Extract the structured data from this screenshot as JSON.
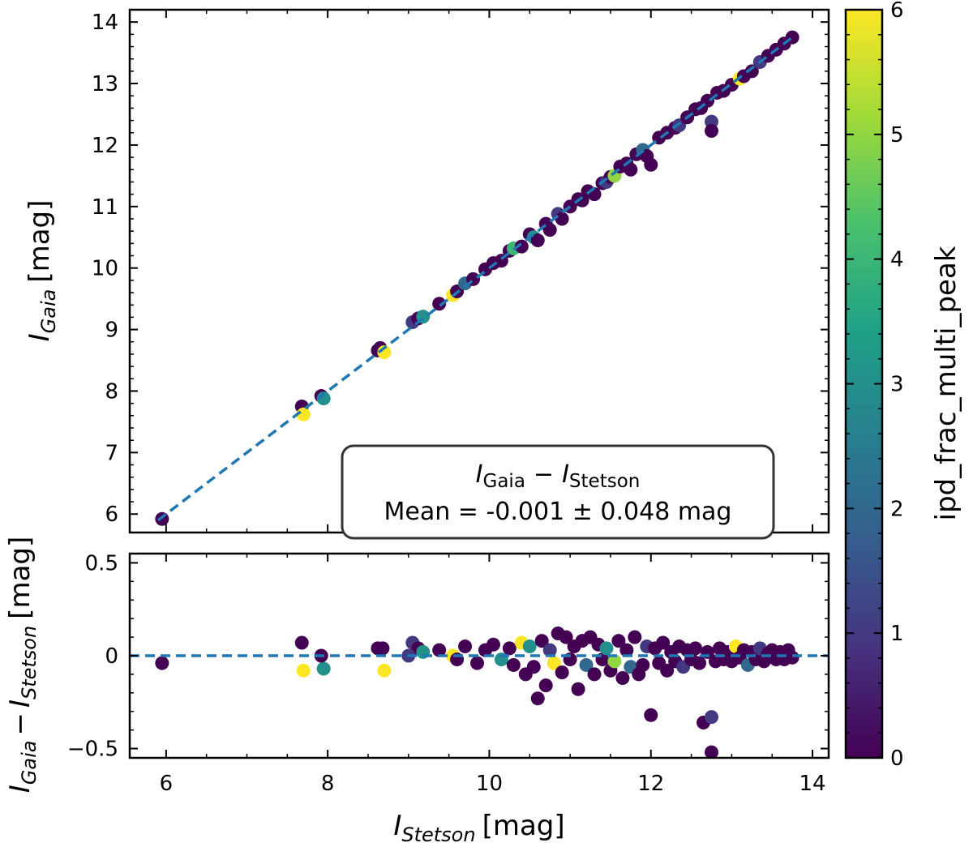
{
  "chart_data": [
    {
      "type": "scatter",
      "panel": "main",
      "xlim": [
        5.55,
        14.2
      ],
      "ylim": [
        5.7,
        14.2
      ],
      "xticks": [
        6,
        8,
        10,
        12,
        14
      ],
      "yticks": [
        6,
        7,
        8,
        9,
        10,
        11,
        12,
        13,
        14
      ],
      "ylabel": {
        "sym": "I",
        "sub": "Gaia",
        "unit": "[mag]"
      },
      "reference_line": {
        "style": "dashed",
        "color": "#1f77b4",
        "x": [
          5.9,
          13.75
        ],
        "y": [
          5.9,
          13.75
        ]
      },
      "points": [
        {
          "x": 5.95,
          "y": 5.92,
          "c": 0
        },
        {
          "x": 7.68,
          "y": 7.75,
          "c": 0
        },
        {
          "x": 7.7,
          "y": 7.62,
          "c": 6
        },
        {
          "x": 7.92,
          "y": 7.92,
          "c": 0
        },
        {
          "x": 7.95,
          "y": 7.88,
          "c": 3
        },
        {
          "x": 8.62,
          "y": 8.66,
          "c": 0
        },
        {
          "x": 8.65,
          "y": 8.7,
          "c": 0
        },
        {
          "x": 8.7,
          "y": 8.63,
          "c": 6
        },
        {
          "x": 9.05,
          "y": 9.12,
          "c": 1
        },
        {
          "x": 9.12,
          "y": 9.18,
          "c": 0
        },
        {
          "x": 9.18,
          "y": 9.21,
          "c": 3
        },
        {
          "x": 9.38,
          "y": 9.42,
          "c": 0
        },
        {
          "x": 9.55,
          "y": 9.56,
          "c": 6
        },
        {
          "x": 9.6,
          "y": 9.62,
          "c": 0
        },
        {
          "x": 9.7,
          "y": 9.75,
          "c": 2
        },
        {
          "x": 9.8,
          "y": 9.82,
          "c": 0
        },
        {
          "x": 9.95,
          "y": 9.98,
          "c": 0
        },
        {
          "x": 10.05,
          "y": 10.08,
          "c": 0
        },
        {
          "x": 10.15,
          "y": 10.12,
          "c": 0
        },
        {
          "x": 10.25,
          "y": 10.28,
          "c": 0
        },
        {
          "x": 10.3,
          "y": 10.32,
          "c": 4
        },
        {
          "x": 10.4,
          "y": 10.35,
          "c": 0
        },
        {
          "x": 10.5,
          "y": 10.55,
          "c": 0
        },
        {
          "x": 10.55,
          "y": 10.5,
          "c": 3
        },
        {
          "x": 10.6,
          "y": 10.45,
          "c": 0
        },
        {
          "x": 10.7,
          "y": 10.72,
          "c": 0
        },
        {
          "x": 10.75,
          "y": 10.62,
          "c": 0
        },
        {
          "x": 10.85,
          "y": 10.88,
          "c": 1
        },
        {
          "x": 10.9,
          "y": 10.8,
          "c": 0
        },
        {
          "x": 11.0,
          "y": 11.0,
          "c": 0
        },
        {
          "x": 11.1,
          "y": 11.12,
          "c": 0
        },
        {
          "x": 11.15,
          "y": 11.1,
          "c": 0
        },
        {
          "x": 11.22,
          "y": 11.25,
          "c": 0
        },
        {
          "x": 11.3,
          "y": 11.2,
          "c": 0
        },
        {
          "x": 11.4,
          "y": 11.38,
          "c": 0
        },
        {
          "x": 11.45,
          "y": 11.4,
          "c": 1
        },
        {
          "x": 11.5,
          "y": 11.48,
          "c": 0
        },
        {
          "x": 11.55,
          "y": 11.5,
          "c": 5
        },
        {
          "x": 11.62,
          "y": 11.65,
          "c": 0
        },
        {
          "x": 11.7,
          "y": 11.7,
          "c": 0
        },
        {
          "x": 11.75,
          "y": 11.6,
          "c": 0
        },
        {
          "x": 11.82,
          "y": 11.85,
          "c": 0
        },
        {
          "x": 11.9,
          "y": 11.92,
          "c": 2
        },
        {
          "x": 11.95,
          "y": 11.82,
          "c": 0
        },
        {
          "x": 12.0,
          "y": 11.68,
          "c": 0
        },
        {
          "x": 12.1,
          "y": 12.12,
          "c": 0
        },
        {
          "x": 12.2,
          "y": 12.2,
          "c": 0
        },
        {
          "x": 12.3,
          "y": 12.28,
          "c": 0
        },
        {
          "x": 12.35,
          "y": 12.32,
          "c": 1
        },
        {
          "x": 12.45,
          "y": 12.45,
          "c": 0
        },
        {
          "x": 12.55,
          "y": 12.58,
          "c": 0
        },
        {
          "x": 12.62,
          "y": 12.6,
          "c": 0
        },
        {
          "x": 12.7,
          "y": 12.72,
          "c": 0
        },
        {
          "x": 12.75,
          "y": 12.38,
          "c": 1
        },
        {
          "x": 12.75,
          "y": 12.23,
          "c": 0
        },
        {
          "x": 12.82,
          "y": 12.85,
          "c": 0
        },
        {
          "x": 12.9,
          "y": 12.88,
          "c": 0
        },
        {
          "x": 13.0,
          "y": 12.98,
          "c": 0
        },
        {
          "x": 13.1,
          "y": 13.08,
          "c": 6
        },
        {
          "x": 13.15,
          "y": 13.12,
          "c": 0
        },
        {
          "x": 13.25,
          "y": 13.2,
          "c": 0
        },
        {
          "x": 13.35,
          "y": 13.35,
          "c": 1
        },
        {
          "x": 13.45,
          "y": 13.45,
          "c": 0
        },
        {
          "x": 13.55,
          "y": 13.55,
          "c": 0
        },
        {
          "x": 13.65,
          "y": 13.65,
          "c": 0
        },
        {
          "x": 13.75,
          "y": 13.75,
          "c": 0
        }
      ],
      "annotation": {
        "line1": {
          "a_sym": "I",
          "a_sub": "Gaia",
          "minus": "−",
          "b_sym": "I",
          "b_sub": "Stetson"
        },
        "line2": "Mean = -0.001 ± 0.048 mag"
      }
    },
    {
      "type": "scatter",
      "panel": "residual",
      "xlim": [
        5.55,
        14.2
      ],
      "ylim": [
        -0.55,
        0.55
      ],
      "xticks": [
        6,
        8,
        10,
        12,
        14
      ],
      "yticks": [
        -0.5,
        0.0,
        0.5
      ],
      "xlabel": {
        "sym": "I",
        "sub": "Stetson",
        "unit": "[mag]"
      },
      "ylabel": {
        "a_sym": "I",
        "a_sub": "Gaia",
        "minus": "−",
        "b_sym": "I",
        "b_sub": "Stetson",
        "unit": "[mag]"
      },
      "reference_line": {
        "style": "dashed",
        "color": "#1f77b4",
        "y": 0.0
      },
      "points": [
        {
          "x": 5.95,
          "y": -0.04,
          "c": 0
        },
        {
          "x": 7.68,
          "y": 0.07,
          "c": 0
        },
        {
          "x": 7.7,
          "y": -0.08,
          "c": 6
        },
        {
          "x": 7.95,
          "y": -0.07,
          "c": 3
        },
        {
          "x": 7.92,
          "y": 0.0,
          "c": 0
        },
        {
          "x": 8.62,
          "y": 0.04,
          "c": 0
        },
        {
          "x": 8.7,
          "y": -0.08,
          "c": 6
        },
        {
          "x": 8.68,
          "y": 0.04,
          "c": 0
        },
        {
          "x": 9.05,
          "y": 0.07,
          "c": 1
        },
        {
          "x": 9.12,
          "y": 0.04,
          "c": 0
        },
        {
          "x": 9.18,
          "y": 0.02,
          "c": 3
        },
        {
          "x": 9.0,
          "y": 0.0,
          "c": 1
        },
        {
          "x": 9.38,
          "y": 0.03,
          "c": 0
        },
        {
          "x": 9.55,
          "y": 0.0,
          "c": 6
        },
        {
          "x": 9.6,
          "y": -0.02,
          "c": 0
        },
        {
          "x": 9.7,
          "y": 0.05,
          "c": 0
        },
        {
          "x": 9.85,
          "y": -0.04,
          "c": 0
        },
        {
          "x": 9.95,
          "y": 0.03,
          "c": 0
        },
        {
          "x": 10.05,
          "y": 0.06,
          "c": 0
        },
        {
          "x": 10.15,
          "y": -0.02,
          "c": 3
        },
        {
          "x": 10.25,
          "y": 0.04,
          "c": 0
        },
        {
          "x": 10.3,
          "y": -0.05,
          "c": 0
        },
        {
          "x": 10.4,
          "y": 0.07,
          "c": 6
        },
        {
          "x": 10.45,
          "y": -0.1,
          "c": 0
        },
        {
          "x": 10.5,
          "y": 0.05,
          "c": 3
        },
        {
          "x": 10.55,
          "y": -0.06,
          "c": 0
        },
        {
          "x": 10.6,
          "y": -0.23,
          "c": 0
        },
        {
          "x": 10.65,
          "y": 0.08,
          "c": 0
        },
        {
          "x": 10.7,
          "y": -0.16,
          "c": 0
        },
        {
          "x": 10.75,
          "y": 0.03,
          "c": 1
        },
        {
          "x": 10.8,
          "y": -0.04,
          "c": 6
        },
        {
          "x": 10.85,
          "y": 0.12,
          "c": 0
        },
        {
          "x": 10.9,
          "y": -0.09,
          "c": 0
        },
        {
          "x": 10.95,
          "y": 0.1,
          "c": 0
        },
        {
          "x": 11.0,
          "y": -0.02,
          "c": 0
        },
        {
          "x": 11.05,
          "y": 0.05,
          "c": 0
        },
        {
          "x": 11.1,
          "y": -0.18,
          "c": 0
        },
        {
          "x": 11.15,
          "y": 0.08,
          "c": 0
        },
        {
          "x": 11.2,
          "y": -0.05,
          "c": 2
        },
        {
          "x": 11.25,
          "y": 0.1,
          "c": 0
        },
        {
          "x": 11.3,
          "y": -0.1,
          "c": 0
        },
        {
          "x": 11.35,
          "y": 0.06,
          "c": 0
        },
        {
          "x": 11.4,
          "y": -0.02,
          "c": 0
        },
        {
          "x": 11.45,
          "y": 0.04,
          "c": 3
        },
        {
          "x": 11.5,
          "y": -0.08,
          "c": 0
        },
        {
          "x": 11.55,
          "y": -0.03,
          "c": 5
        },
        {
          "x": 11.6,
          "y": 0.08,
          "c": 0
        },
        {
          "x": 11.65,
          "y": -0.12,
          "c": 0
        },
        {
          "x": 11.7,
          "y": 0.03,
          "c": 0
        },
        {
          "x": 11.75,
          "y": -0.06,
          "c": 2
        },
        {
          "x": 11.8,
          "y": 0.1,
          "c": 0
        },
        {
          "x": 11.85,
          "y": -0.1,
          "c": 0
        },
        {
          "x": 11.9,
          "y": -0.05,
          "c": 0
        },
        {
          "x": 11.95,
          "y": 0.05,
          "c": 1
        },
        {
          "x": 12.0,
          "y": -0.32,
          "c": 0
        },
        {
          "x": 12.05,
          "y": 0.04,
          "c": 0
        },
        {
          "x": 12.1,
          "y": -0.04,
          "c": 0
        },
        {
          "x": 12.15,
          "y": 0.07,
          "c": 0
        },
        {
          "x": 12.2,
          "y": -0.08,
          "c": 0
        },
        {
          "x": 12.25,
          "y": 0.02,
          "c": 0
        },
        {
          "x": 12.3,
          "y": -0.03,
          "c": 0
        },
        {
          "x": 12.35,
          "y": 0.05,
          "c": 0
        },
        {
          "x": 12.4,
          "y": -0.06,
          "c": 1
        },
        {
          "x": 12.45,
          "y": 0.03,
          "c": 0
        },
        {
          "x": 12.5,
          "y": -0.02,
          "c": 0
        },
        {
          "x": 12.55,
          "y": 0.04,
          "c": 0
        },
        {
          "x": 12.6,
          "y": -0.04,
          "c": 0
        },
        {
          "x": 12.65,
          "y": -0.36,
          "c": 0
        },
        {
          "x": 12.7,
          "y": 0.02,
          "c": 0
        },
        {
          "x": 12.75,
          "y": -0.33,
          "c": 1
        },
        {
          "x": 12.75,
          "y": -0.52,
          "c": 0
        },
        {
          "x": 12.8,
          "y": -0.03,
          "c": 0
        },
        {
          "x": 12.85,
          "y": 0.04,
          "c": 0
        },
        {
          "x": 12.9,
          "y": -0.02,
          "c": 0
        },
        {
          "x": 12.95,
          "y": 0.02,
          "c": 0
        },
        {
          "x": 13.0,
          "y": -0.03,
          "c": 0
        },
        {
          "x": 13.05,
          "y": 0.05,
          "c": 6
        },
        {
          "x": 13.1,
          "y": -0.01,
          "c": 0
        },
        {
          "x": 13.15,
          "y": 0.03,
          "c": 0
        },
        {
          "x": 13.2,
          "y": -0.05,
          "c": 2
        },
        {
          "x": 13.25,
          "y": 0.02,
          "c": 0
        },
        {
          "x": 13.3,
          "y": -0.02,
          "c": 0
        },
        {
          "x": 13.35,
          "y": 0.04,
          "c": 1
        },
        {
          "x": 13.4,
          "y": -0.03,
          "c": 0
        },
        {
          "x": 13.45,
          "y": 0.01,
          "c": 0
        },
        {
          "x": 13.5,
          "y": 0.03,
          "c": 0
        },
        {
          "x": 13.55,
          "y": -0.02,
          "c": 0
        },
        {
          "x": 13.6,
          "y": 0.02,
          "c": 0
        },
        {
          "x": 13.65,
          "y": -0.02,
          "c": 0
        },
        {
          "x": 13.7,
          "y": 0.03,
          "c": 0
        },
        {
          "x": 13.75,
          "y": -0.01,
          "c": 0
        }
      ]
    },
    {
      "type": "colorbar",
      "label": "ipd_frac_multi_peak",
      "range": [
        0,
        6
      ],
      "ticks": [
        0,
        1,
        2,
        3,
        4,
        5,
        6
      ],
      "colormap": "viridis",
      "stops": [
        "#440154",
        "#46327e",
        "#365c8d",
        "#277f8e",
        "#1fa187",
        "#4ac16d",
        "#a0da39",
        "#fde725"
      ]
    }
  ]
}
